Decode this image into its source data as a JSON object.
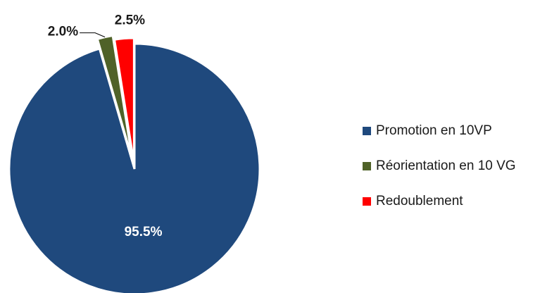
{
  "chart_data": {
    "type": "pie",
    "title": "",
    "slices": [
      {
        "label": "Promotion en 10VP",
        "value": 95.5,
        "display": "95.5%",
        "color": "#1F497D"
      },
      {
        "label": "Réorientation en 10 VG",
        "value": 2.0,
        "display": "2.0%",
        "color": "#4F6228"
      },
      {
        "label": "Redoublement",
        "value": 2.5,
        "display": "2.5%",
        "color": "#FF0000"
      }
    ],
    "legend": {
      "position": "right"
    },
    "data_labels": true
  }
}
